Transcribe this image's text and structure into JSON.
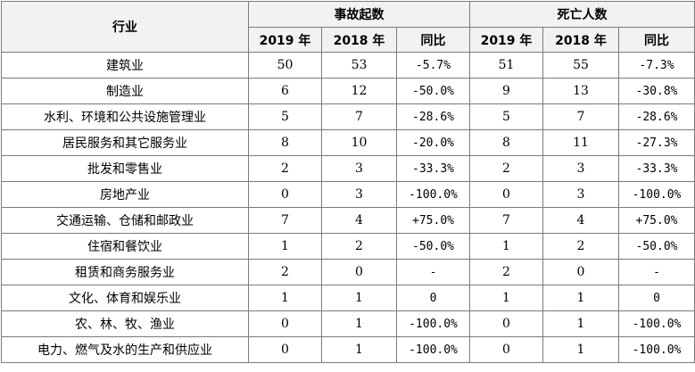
{
  "header": {
    "industry": "行业",
    "accidents": "事故起数",
    "deaths": "死亡人数",
    "y2019": "2019 年",
    "y2018": "2018 年",
    "yoy": "同比"
  },
  "rows": [
    {
      "industry": "建筑业",
      "acc2019": "50",
      "acc2018": "53",
      "acc_yoy": "-5.7%",
      "d2019": "51",
      "d2018": "55",
      "d_yoy": "-7.3%"
    },
    {
      "industry": "制造业",
      "acc2019": "6",
      "acc2018": "12",
      "acc_yoy": "-50.0%",
      "d2019": "9",
      "d2018": "13",
      "d_yoy": "-30.8%"
    },
    {
      "industry": "水利、环境和公共设施管理业",
      "acc2019": "5",
      "acc2018": "7",
      "acc_yoy": "-28.6%",
      "d2019": "5",
      "d2018": "7",
      "d_yoy": "-28.6%"
    },
    {
      "industry": "居民服务和其它服务业",
      "acc2019": "8",
      "acc2018": "10",
      "acc_yoy": "-20.0%",
      "d2019": "8",
      "d2018": "11",
      "d_yoy": "-27.3%"
    },
    {
      "industry": "批发和零售业",
      "acc2019": "2",
      "acc2018": "3",
      "acc_yoy": "-33.3%",
      "d2019": "2",
      "d2018": "3",
      "d_yoy": "-33.3%"
    },
    {
      "industry": "房地产业",
      "acc2019": "0",
      "acc2018": "3",
      "acc_yoy": "-100.0%",
      "d2019": "0",
      "d2018": "3",
      "d_yoy": "-100.0%"
    },
    {
      "industry": "交通运输、仓储和邮政业",
      "acc2019": "7",
      "acc2018": "4",
      "acc_yoy": "+75.0%",
      "d2019": "7",
      "d2018": "4",
      "d_yoy": "+75.0%"
    },
    {
      "industry": "住宿和餐饮业",
      "acc2019": "1",
      "acc2018": "2",
      "acc_yoy": "-50.0%",
      "d2019": "1",
      "d2018": "2",
      "d_yoy": "-50.0%"
    },
    {
      "industry": "租赁和商务服务业",
      "acc2019": "2",
      "acc2018": "0",
      "acc_yoy": "-",
      "d2019": "2",
      "d2018": "0",
      "d_yoy": "-"
    },
    {
      "industry": "文化、体育和娱乐业",
      "acc2019": "1",
      "acc2018": "1",
      "acc_yoy": "0",
      "d2019": "1",
      "d2018": "1",
      "d_yoy": "0"
    },
    {
      "industry": "农、林、牧、渔业",
      "acc2019": "0",
      "acc2018": "1",
      "acc_yoy": "-100.0%",
      "d2019": "0",
      "d2018": "1",
      "d_yoy": "-100.0%"
    },
    {
      "industry": "电力、燃气及水的生产和供应业",
      "acc2019": "0",
      "acc2018": "1",
      "acc_yoy": "-100.0%",
      "d2019": "0",
      "d2018": "1",
      "d_yoy": "-100.0%"
    }
  ]
}
